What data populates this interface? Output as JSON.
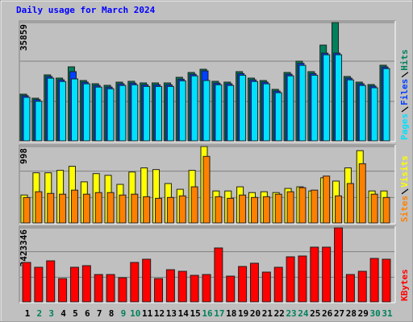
{
  "chart_data": [
    {
      "type": "bar",
      "title": "Daily usage for March 2024",
      "title_color": "#0000ff",
      "ylim": [
        0,
        35859
      ],
      "yticks": [
        35859
      ],
      "grid_divisions": 3,
      "series": [
        {
          "name": "Hits",
          "color": "#00805c",
          "values": [
            14146,
            12927,
            20000,
            19024,
            22439,
            18293,
            17317,
            16829,
            17805,
            18049,
            17561,
            17561,
            17561,
            19268,
            20732,
            21707,
            18049,
            17805,
            20976,
            19024,
            18293,
            15610,
            20732,
            24146,
            20976,
            29024,
            35859,
            19512,
            17805,
            17073,
            22927
          ]
        },
        {
          "name": "Files",
          "color": "#0040ff",
          "values": [
            13700,
            12500,
            19500,
            18500,
            20976,
            17800,
            16800,
            16300,
            17300,
            17500,
            17000,
            17000,
            17000,
            18700,
            20200,
            21220,
            17500,
            17300,
            20400,
            18500,
            17800,
            15100,
            20200,
            23500,
            20400,
            26585,
            26585,
            19000,
            17300,
            16600,
            22400
          ]
        },
        {
          "name": "Pages",
          "color": "#00e0ff",
          "values": [
            13200,
            12000,
            19000,
            18000,
            18780,
            17300,
            16300,
            15800,
            16800,
            17000,
            16500,
            16500,
            16500,
            18200,
            19700,
            18293,
            17000,
            16800,
            19900,
            18000,
            17300,
            14600,
            19700,
            22900,
            19900,
            26100,
            26100,
            18500,
            16800,
            16100,
            21900
          ]
        }
      ]
    },
    {
      "type": "bar",
      "ylim": [
        0,
        998
      ],
      "yticks": [
        998
      ],
      "grid_divisions": 3,
      "series": [
        {
          "name": "Visits",
          "color": "#ffff00",
          "values": [
            365,
            655,
            655,
            687,
            740,
            537,
            644,
            622,
            504,
            665,
            719,
            697,
            515,
            440,
            687,
            998,
            418,
            418,
            472,
            397,
            408,
            397,
            451,
            472,
            418,
            590,
            547,
            719,
            944,
            418,
            418
          ]
        },
        {
          "name": "Sites",
          "color": "#ff8000",
          "values": [
            333,
            408,
            386,
            376,
            429,
            376,
            397,
            397,
            365,
            376,
            343,
            322,
            333,
            354,
            472,
            869,
            343,
            322,
            365,
            333,
            343,
            376,
            408,
            461,
            429,
            612,
            354,
            515,
            773,
            376,
            333
          ]
        }
      ]
    },
    {
      "type": "bar",
      "ylim": [
        0,
        2423346
      ],
      "yticks": [
        2423346
      ],
      "grid_divisions": 3,
      "categories": [
        "1",
        "2",
        "3",
        "4",
        "5",
        "6",
        "7",
        "8",
        "9",
        "10",
        "11",
        "12",
        "13",
        "14",
        "15",
        "16",
        "17",
        "18",
        "19",
        "20",
        "21",
        "22",
        "23",
        "24",
        "25",
        "26",
        "27",
        "28",
        "29",
        "30",
        "31"
      ],
      "category_colors": [
        "#000000",
        "#00805c",
        "#00805c",
        "#000000",
        "#000000",
        "#000000",
        "#000000",
        "#000000",
        "#00805c",
        "#00805c",
        "#000000",
        "#000000",
        "#000000",
        "#000000",
        "#000000",
        "#00805c",
        "#00805c",
        "#000000",
        "#000000",
        "#000000",
        "#000000",
        "#000000",
        "#00805c",
        "#00805c",
        "#000000",
        "#000000",
        "#000000",
        "#000000",
        "#000000",
        "#00805c",
        "#00805c"
      ],
      "series": [
        {
          "name": "KBytes",
          "color": "#ff0000",
          "values": [
            1290709,
            1132663,
            1343391,
            763889,
            1132663,
            1185345,
            895594,
            895594,
            790230,
            1290709,
            1396073,
            763889,
            1053640,
            1000958,
            869253,
            895594,
            1764847,
            842912,
            1159004,
            1264368,
            974617,
            1132663,
            1475096,
            1501437,
            1791188,
            1791188,
            2423346,
            895594,
            1000958,
            1422414,
            1396073
          ]
        }
      ]
    }
  ]
}
